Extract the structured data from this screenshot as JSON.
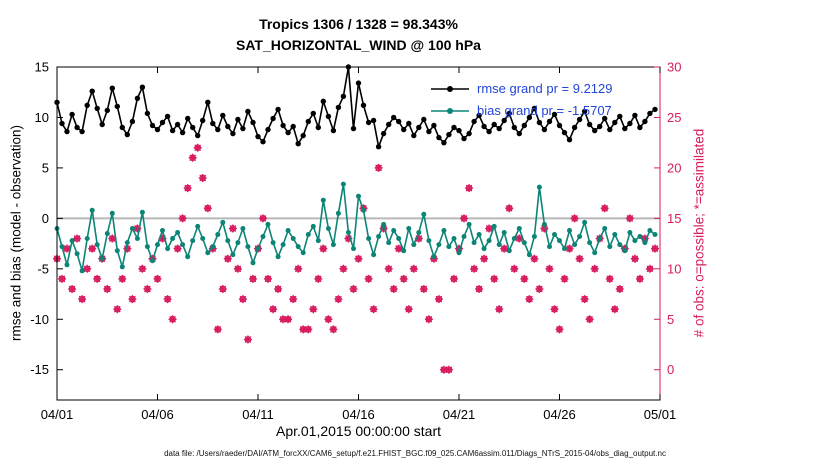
{
  "figure": {
    "footer": "data file: /Users/raeder/DAI/ATM_forcXX/CAM6_setup/f.e21.FHIST_BGC.f09_025.CAM6assim.011/Diags_NTrS_2015-04/obs_diag_output.nc"
  },
  "chart_data": {
    "type": "line",
    "title": "Tropics 1306 / 1328 = 98.343%",
    "subtitle": "SAT_HORIZONTAL_WIND @ 100 hPa",
    "xlabel": "Apr.01,2015 00:00:00 start",
    "ylabel_left": "rmse and bias (model - observation)",
    "ylabel_right": "# of obs: o=possible; *=assimilated",
    "legend": [
      {
        "label": "rmse grand pr = 9.2129",
        "value": 9.2129,
        "color": "#000000"
      },
      {
        "label": "bias grand pr = -1.5707",
        "value": -1.5707,
        "color": "#0c8577"
      }
    ],
    "colors": {
      "rmse": "#000000",
      "bias": "#0c8577",
      "obs": "#d81b60",
      "legend_text": "#2244dd",
      "zero_line": "#b8b8b8",
      "axis": "#000000"
    },
    "x_range_days": [
      0,
      30
    ],
    "time_step_days": 0.25,
    "x_tick_days": [
      0,
      5,
      10,
      15,
      20,
      25,
      30
    ],
    "x_tick_labels": [
      "04/01",
      "04/06",
      "04/11",
      "04/16",
      "04/21",
      "04/26",
      "05/01"
    ],
    "ylim_left": [
      -18,
      15
    ],
    "yticks_left": [
      -15,
      -10,
      -5,
      0,
      5,
      10,
      15
    ],
    "ylim_right": [
      -3,
      30
    ],
    "yticks_right": [
      0,
      5,
      10,
      15,
      20,
      25,
      30
    ],
    "grid": false,
    "legend_position": "upper-right-inside",
    "series": {
      "rmse": [
        11.5,
        9.4,
        8.6,
        10.3,
        9.0,
        8.6,
        11.2,
        12.6,
        10.9,
        9.3,
        10.7,
        12.9,
        11.1,
        9.0,
        8.3,
        9.6,
        11.9,
        13.0,
        10.4,
        9.2,
        8.8,
        9.5,
        10.1,
        8.7,
        9.3,
        8.5,
        9.9,
        9.0,
        8.2,
        9.7,
        11.5,
        9.4,
        8.8,
        10.2,
        9.1,
        8.4,
        9.8,
        8.9,
        10.6,
        9.5,
        8.1,
        7.6,
        8.8,
        9.9,
        10.8,
        9.2,
        8.5,
        9.1,
        7.4,
        8.2,
        9.6,
        10.4,
        9.0,
        11.6,
        10.1,
        8.7,
        11.0,
        12.1,
        15.0,
        8.9,
        13.4,
        11.2,
        9.5,
        9.7,
        7.1,
        8.4,
        9.3,
        10.0,
        9.6,
        8.8,
        9.4,
        8.2,
        9.0,
        9.8,
        8.6,
        9.2,
        8.0,
        7.5,
        8.3,
        9.0,
        8.7,
        7.9,
        8.4,
        9.6,
        10.2,
        9.1,
        8.6,
        9.3,
        8.9,
        9.7,
        10.4,
        9.0,
        8.4,
        9.2,
        10.0,
        10.9,
        9.5,
        8.8,
        9.6,
        10.3,
        9.2,
        8.5,
        7.8,
        9.0,
        9.8,
        10.6,
        9.3,
        8.7,
        9.1,
        9.9,
        8.8,
        9.5,
        10.1,
        8.9,
        9.4,
        10.2,
        9.0,
        9.6,
        10.4,
        10.8
      ],
      "bias": [
        -1.0,
        -2.8,
        -4.6,
        -2.2,
        -3.5,
        -5.2,
        -2.0,
        0.8,
        -2.6,
        -4.0,
        -1.5,
        0.5,
        -3.2,
        -4.8,
        -2.4,
        -1.0,
        -2.0,
        0.6,
        -2.8,
        -4.2,
        -2.6,
        -1.2,
        -3.0,
        -2.0,
        -1.4,
        -2.6,
        -3.8,
        -2.2,
        -0.8,
        -2.0,
        -3.4,
        -2.8,
        -1.6,
        -0.4,
        -2.2,
        -3.6,
        -2.4,
        -1.0,
        -2.8,
        -4.4,
        -3.0,
        -1.8,
        -0.6,
        -2.4,
        -3.8,
        -2.6,
        -1.2,
        -2.0,
        -2.8,
        -3.4,
        -1.6,
        -0.8,
        -2.2,
        1.8,
        -1.0,
        -2.6,
        0.5,
        3.4,
        -1.4,
        -3.0,
        2.2,
        0.8,
        -2.0,
        -3.6,
        -1.8,
        -0.6,
        -2.4,
        -1.2,
        -2.0,
        -3.2,
        -1.0,
        -2.6,
        -1.4,
        0.4,
        -2.2,
        -3.8,
        -2.6,
        -1.2,
        -2.8,
        -2.0,
        -3.4,
        -1.8,
        -0.6,
        -2.4,
        -1.6,
        -3.0,
        -2.2,
        -0.8,
        -2.6,
        -1.4,
        -3.2,
        -2.0,
        -1.0,
        -2.4,
        -3.6,
        -1.8,
        3.1,
        -0.6,
        -2.8,
        -1.6,
        -2.2,
        -3.0,
        -1.2,
        -2.6,
        -1.8,
        -0.4,
        -2.4,
        -3.4,
        -2.0,
        -1.0,
        -2.8,
        -1.6,
        -2.6,
        -3.2,
        -1.4,
        -2.2,
        -1.8,
        -2.4,
        -1.2,
        -1.6
      ],
      "obs_count": [
        11,
        9,
        12,
        8,
        13,
        7,
        10,
        12,
        9,
        11,
        8,
        13,
        6,
        9,
        12,
        7,
        14,
        10,
        8,
        11,
        9,
        13,
        7,
        5,
        12,
        15,
        18,
        21,
        22,
        19,
        16,
        12,
        4,
        8,
        11,
        14,
        10,
        7,
        3,
        9,
        12,
        15,
        9,
        6,
        8,
        5,
        5,
        7,
        10,
        4,
        4,
        6,
        9,
        12,
        5,
        4,
        7,
        10,
        13,
        8,
        11,
        16,
        9,
        6,
        20,
        14,
        10,
        8,
        12,
        9,
        6,
        10,
        13,
        8,
        5,
        11,
        7,
        0,
        0,
        9,
        12,
        15,
        18,
        10,
        8,
        11,
        14,
        9,
        6,
        12,
        16,
        10,
        13,
        9,
        7,
        11,
        8,
        14,
        10,
        6,
        4,
        9,
        12,
        15,
        11,
        7,
        5,
        10,
        13,
        16,
        9,
        6,
        8,
        12,
        15,
        11,
        9,
        13,
        10,
        12
      ]
    }
  }
}
